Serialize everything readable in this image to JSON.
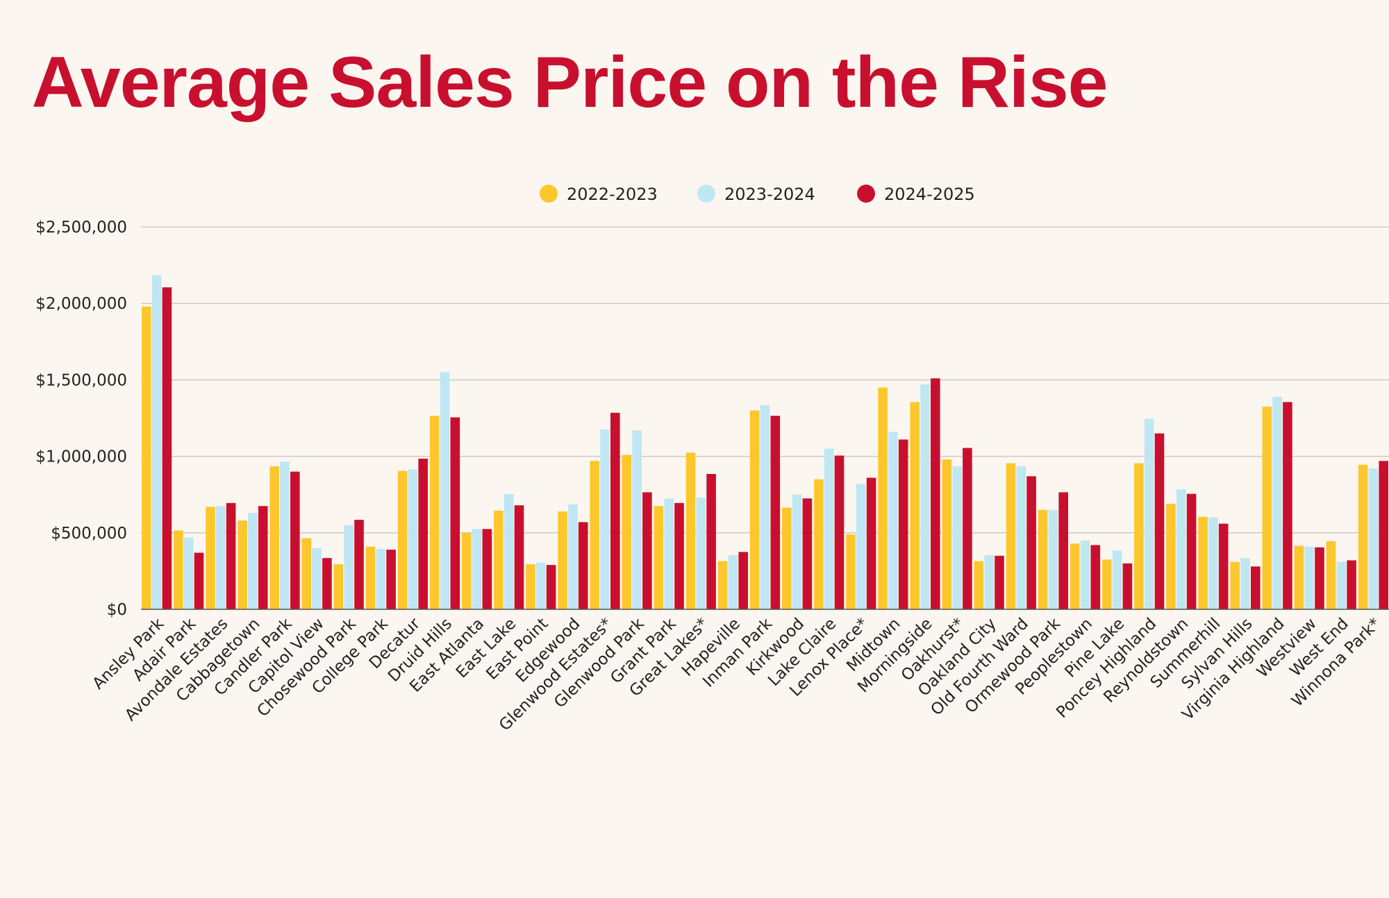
{
  "colors": {
    "background": "#fbf6f0",
    "title": "#c8102e",
    "series": [
      "#fcc72c",
      "#bfe6f3",
      "#c8102e"
    ],
    "grid": "#cfcac4",
    "axis": "#555555"
  },
  "chart_data": {
    "type": "bar",
    "title": "Average Sales Price on the Rise",
    "xlabel": "",
    "ylabel": "",
    "ylim": [
      0,
      2500000
    ],
    "yticks": [
      0,
      500000,
      1000000,
      1500000,
      2000000,
      2500000
    ],
    "ytick_labels": [
      "$0",
      "$500,000",
      "$1,000,000",
      "$1,500,000",
      "$2,000,000",
      "$2,500,000"
    ],
    "grid": true,
    "legend_position": "top-center",
    "categories": [
      "Ansley Park",
      "Adair Park",
      "Avondale Estates",
      "Cabbagetown",
      "Candler Park",
      "Capitol View",
      "Chosewood Park",
      "College Park",
      "Decatur",
      "Druid Hills",
      "East Atlanta",
      "East Lake",
      "East Point",
      "Edgewood",
      "Glenwood Estates*",
      "Glenwood Park",
      "Grant Park",
      "Great Lakes*",
      "Hapeville",
      "Inman Park",
      "Kirkwood",
      "Lake Claire",
      "Lenox Place*",
      "Midtown",
      "Morningside",
      "Oakhurst*",
      "Oakland City",
      "Old Fourth Ward",
      "Ormewood Park",
      "Peoplestown",
      "Pine Lake",
      "Poncey Highland",
      "Reynoldstown",
      "Summerhill",
      "Sylvan Hills",
      "Virginia Highland",
      "Westview",
      "West End",
      "Winnona Park*"
    ],
    "series": [
      {
        "name": "2022-2023",
        "values": [
          1980000,
          515000,
          670000,
          580000,
          935000,
          465000,
          295000,
          410000,
          905000,
          1265000,
          500000,
          645000,
          295000,
          640000,
          970000,
          1010000,
          675000,
          1025000,
          315000,
          1300000,
          665000,
          850000,
          490000,
          1450000,
          1355000,
          980000,
          315000,
          955000,
          650000,
          430000,
          325000,
          955000,
          690000,
          605000,
          310000,
          1325000,
          415000,
          445000,
          945000
        ]
      },
      {
        "name": "2023-2024",
        "values": [
          2185000,
          470000,
          675000,
          630000,
          965000,
          400000,
          550000,
          395000,
          915000,
          1550000,
          525000,
          755000,
          305000,
          685000,
          1175000,
          1170000,
          725000,
          730000,
          355000,
          1335000,
          750000,
          1050000,
          820000,
          1160000,
          1470000,
          935000,
          355000,
          935000,
          650000,
          450000,
          385000,
          1245000,
          785000,
          600000,
          335000,
          1390000,
          410000,
          310000,
          920000
        ]
      },
      {
        "name": "2024-2025",
        "values": [
          2105000,
          370000,
          695000,
          675000,
          900000,
          335000,
          585000,
          390000,
          985000,
          1255000,
          525000,
          680000,
          290000,
          570000,
          1285000,
          765000,
          695000,
          885000,
          375000,
          1265000,
          725000,
          1005000,
          860000,
          1110000,
          1510000,
          1055000,
          350000,
          870000,
          765000,
          420000,
          300000,
          1150000,
          755000,
          560000,
          280000,
          1355000,
          405000,
          320000,
          970000
        ]
      }
    ]
  }
}
